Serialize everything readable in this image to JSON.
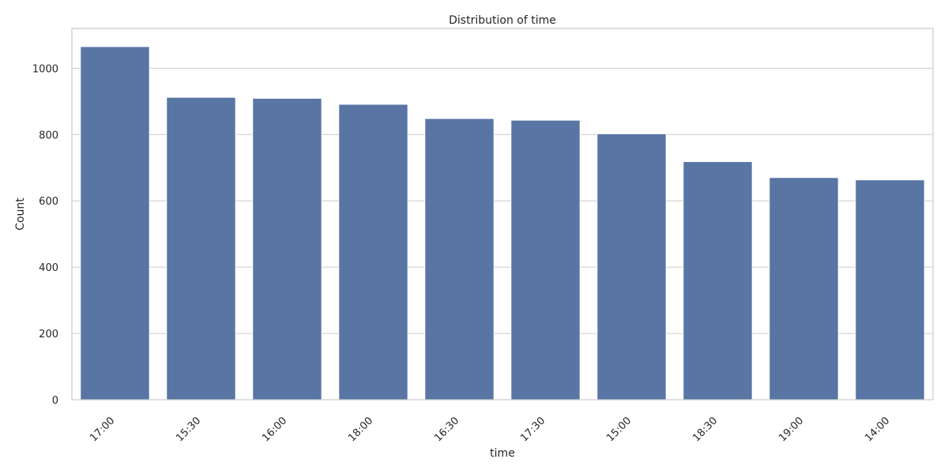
{
  "chart_data": {
    "type": "bar",
    "title": "Distribution of time",
    "xlabel": "time",
    "ylabel": "Count",
    "categories": [
      "17:00",
      "15:30",
      "16:00",
      "18:00",
      "16:30",
      "17:30",
      "15:00",
      "18:30",
      "19:00",
      "14:00"
    ],
    "values": [
      1065,
      912,
      909,
      891,
      848,
      843,
      802,
      718,
      670,
      663
    ],
    "ylim": [
      0,
      1120
    ],
    "yticks": [
      0,
      200,
      400,
      600,
      800,
      1000
    ],
    "grid": "horizontal",
    "bar_color": "#5875a4",
    "grid_color": "#cccccc",
    "frame_color": "#cccccc",
    "x_tick_rotation_deg": 45
  }
}
